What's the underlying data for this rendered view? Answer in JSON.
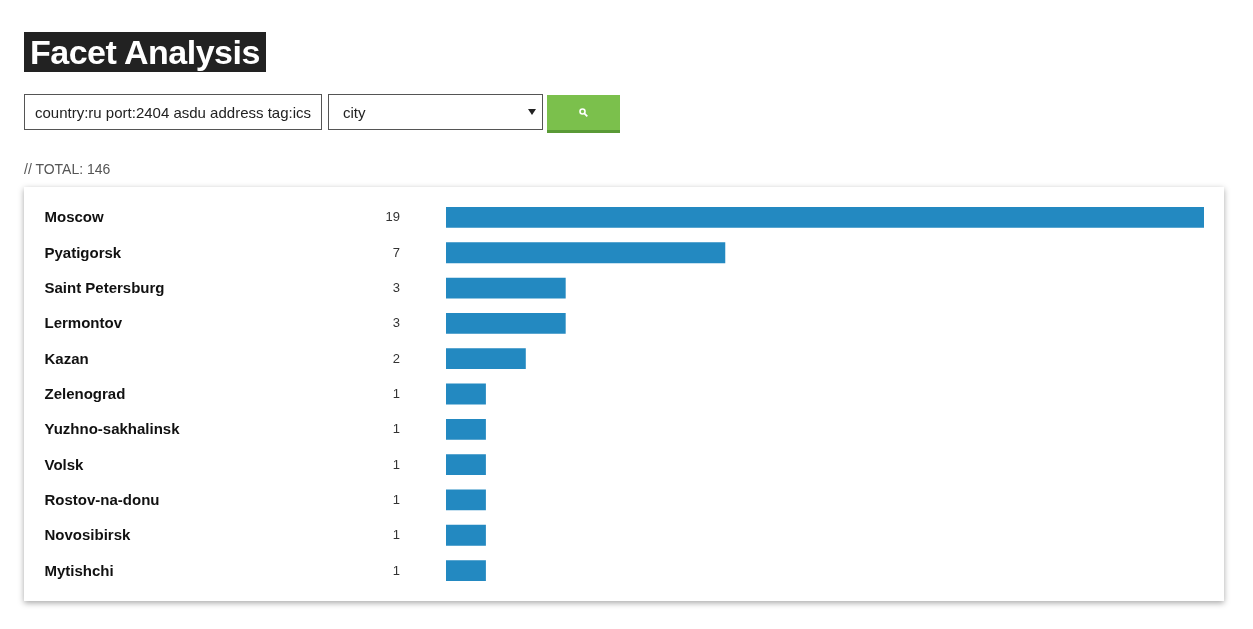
{
  "chart_data": {
    "type": "bar",
    "orientation": "horizontal",
    "title": "Facet Analysis",
    "categories": [
      "Moscow",
      "Pyatigorsk",
      "Saint Petersburg",
      "Lermontov",
      "Kazan",
      "Zelenograd",
      "Yuzhno-sakhalinsk",
      "Volsk",
      "Rostov-na-donu",
      "Novosibirsk",
      "Mytishchi"
    ],
    "values": [
      19,
      7,
      3,
      3,
      2,
      1,
      1,
      1,
      1,
      1,
      1
    ],
    "color": "#2389c1",
    "data_labels": true,
    "annotations": [
      "country:ru port:2404 asdu address tag:ics",
      "city",
      "// TOTAL: 146"
    ]
  }
}
